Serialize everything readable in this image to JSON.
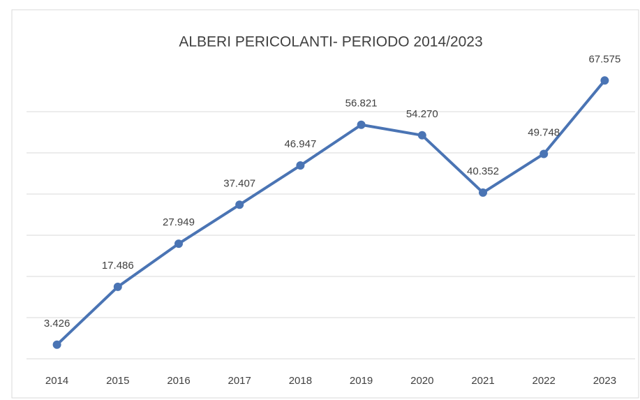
{
  "chart_data": {
    "type": "line",
    "title": "ALBERI PERICOLANTI- PERIODO 2014/2023",
    "categories": [
      "2014",
      "2015",
      "2016",
      "2017",
      "2018",
      "2019",
      "2020",
      "2021",
      "2022",
      "2023"
    ],
    "values": [
      3426,
      17486,
      27949,
      37407,
      46947,
      56821,
      54270,
      40352,
      49748,
      67575
    ],
    "value_labels": [
      "3.426",
      "17.486",
      "27.949",
      "37.407",
      "46.947",
      "56.821",
      "54.270",
      "40.352",
      "49.748",
      "67.575"
    ],
    "color": "#4a74b4",
    "ylim": [
      0,
      70000
    ],
    "yticks": [
      0,
      10000,
      20000,
      30000,
      40000,
      50000,
      60000
    ],
    "grid": true
  }
}
